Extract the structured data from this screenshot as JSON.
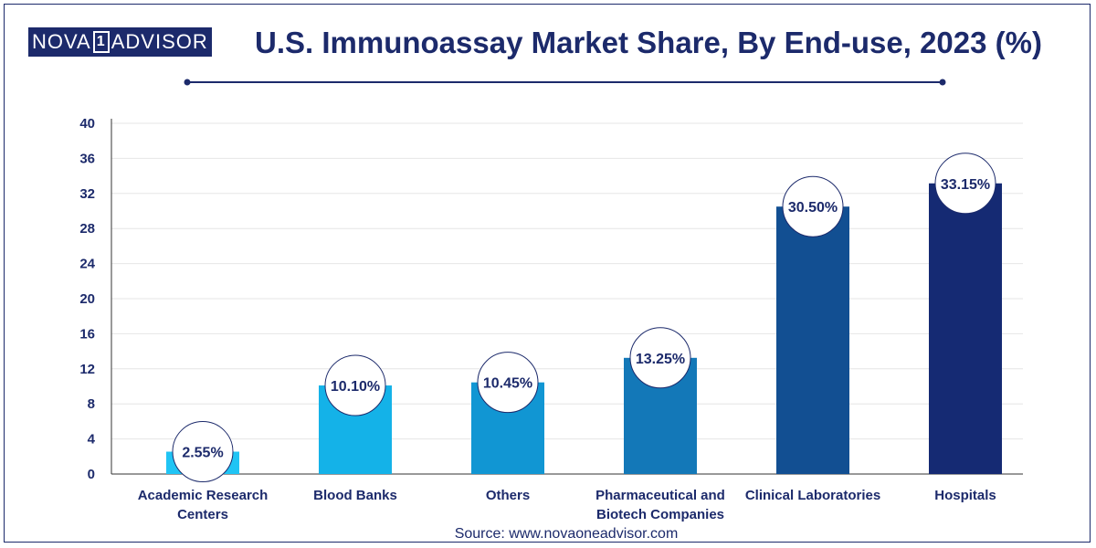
{
  "header": {
    "logo_left": "NOVA",
    "logo_mark": "1",
    "logo_right": "ADVISOR",
    "title": "U.S. Immunoassay Market Share, By End-use, 2023 (%)"
  },
  "footer": {
    "source": "Source: www.novaoneadvisor.com"
  },
  "chart_data": {
    "type": "bar",
    "title": "U.S. Immunoassay Market Share, By End-use, 2023 (%)",
    "xlabel": "",
    "ylabel": "",
    "ylim": [
      0,
      40
    ],
    "yticks": [
      0,
      4,
      8,
      12,
      16,
      20,
      24,
      28,
      32,
      36,
      40
    ],
    "grid": true,
    "categories": [
      [
        "Academic Research",
        "Centers"
      ],
      [
        "Blood Banks"
      ],
      [
        "Others"
      ],
      [
        "Pharmaceutical and",
        "Biotech Companies"
      ],
      [
        "Clinical Laboratories"
      ],
      [
        "Hospitals"
      ]
    ],
    "values": [
      2.55,
      10.1,
      10.45,
      13.25,
      30.5,
      33.15
    ],
    "data_labels": [
      "2.55%",
      "10.10%",
      "10.45%",
      "13.25%",
      "30.50%",
      "33.15%"
    ],
    "colors": [
      "#20c4f4",
      "#14b2e8",
      "#1196d3",
      "#1378b8",
      "#124f92",
      "#152a73"
    ]
  }
}
